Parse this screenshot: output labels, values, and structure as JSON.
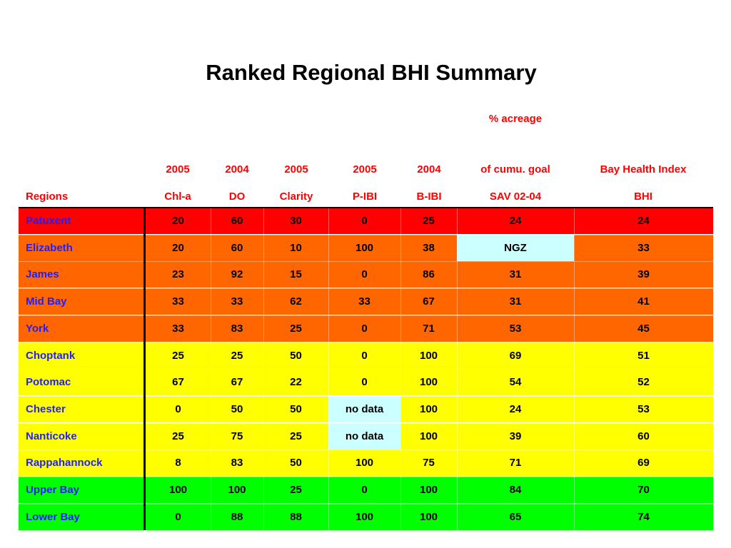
{
  "title": "Ranked Regional BHI Summary",
  "header": {
    "acreage_note": "% acreage",
    "years": [
      "2005",
      "2004",
      "2005",
      "2005",
      "2004",
      "of cumu. goal",
      "Bay Health Index"
    ],
    "labels": [
      "Regions",
      "Chl-a",
      "DO",
      "Clarity",
      "P-IBI",
      "B-IBI",
      "SAV 02-04",
      "BHI"
    ]
  },
  "colors": {
    "red": "#ff0000",
    "orange": "#ff6600",
    "yellow": "#ffff00",
    "green": "#00ff00",
    "highlight": "#ccffff",
    "region_text": "#1f1fff",
    "header_text": "#ff0000"
  },
  "rows": [
    {
      "region": "Patuxent",
      "band": "red",
      "values": [
        "20",
        "60",
        "30",
        "0",
        "25",
        "24",
        "24"
      ],
      "highlight": []
    },
    {
      "region": "Elizabeth",
      "band": "orange",
      "values": [
        "20",
        "60",
        "10",
        "100",
        "38",
        "NGZ",
        "33"
      ],
      "highlight": [
        5
      ]
    },
    {
      "region": "James",
      "band": "orange",
      "values": [
        "23",
        "92",
        "15",
        "0",
        "86",
        "31",
        "39"
      ],
      "highlight": []
    },
    {
      "region": "Mid Bay",
      "band": "orange",
      "values": [
        "33",
        "33",
        "62",
        "33",
        "67",
        "31",
        "41"
      ],
      "highlight": []
    },
    {
      "region": "York",
      "band": "orange",
      "values": [
        "33",
        "83",
        "25",
        "0",
        "71",
        "53",
        "45"
      ],
      "highlight": []
    },
    {
      "region": "Choptank",
      "band": "yellow",
      "values": [
        "25",
        "25",
        "50",
        "0",
        "100",
        "69",
        "51"
      ],
      "highlight": []
    },
    {
      "region": "Potomac",
      "band": "yellow",
      "values": [
        "67",
        "67",
        "22",
        "0",
        "100",
        "54",
        "52"
      ],
      "highlight": []
    },
    {
      "region": "Chester",
      "band": "yellow",
      "values": [
        "0",
        "50",
        "50",
        "no data",
        "100",
        "24",
        "53"
      ],
      "highlight": [
        3
      ]
    },
    {
      "region": "Nanticoke",
      "band": "yellow",
      "values": [
        "25",
        "75",
        "25",
        "no data",
        "100",
        "39",
        "60"
      ],
      "highlight": [
        3
      ]
    },
    {
      "region": "Rappahannock",
      "band": "yellow",
      "values": [
        "8",
        "83",
        "50",
        "100",
        "75",
        "71",
        "69"
      ],
      "highlight": []
    },
    {
      "region": "Upper Bay",
      "band": "green",
      "values": [
        "100",
        "100",
        "25",
        "0",
        "100",
        "84",
        "70"
      ],
      "highlight": []
    },
    {
      "region": "Lower Bay",
      "band": "green",
      "values": [
        "0",
        "88",
        "88",
        "100",
        "100",
        "65",
        "74"
      ],
      "highlight": []
    }
  ]
}
